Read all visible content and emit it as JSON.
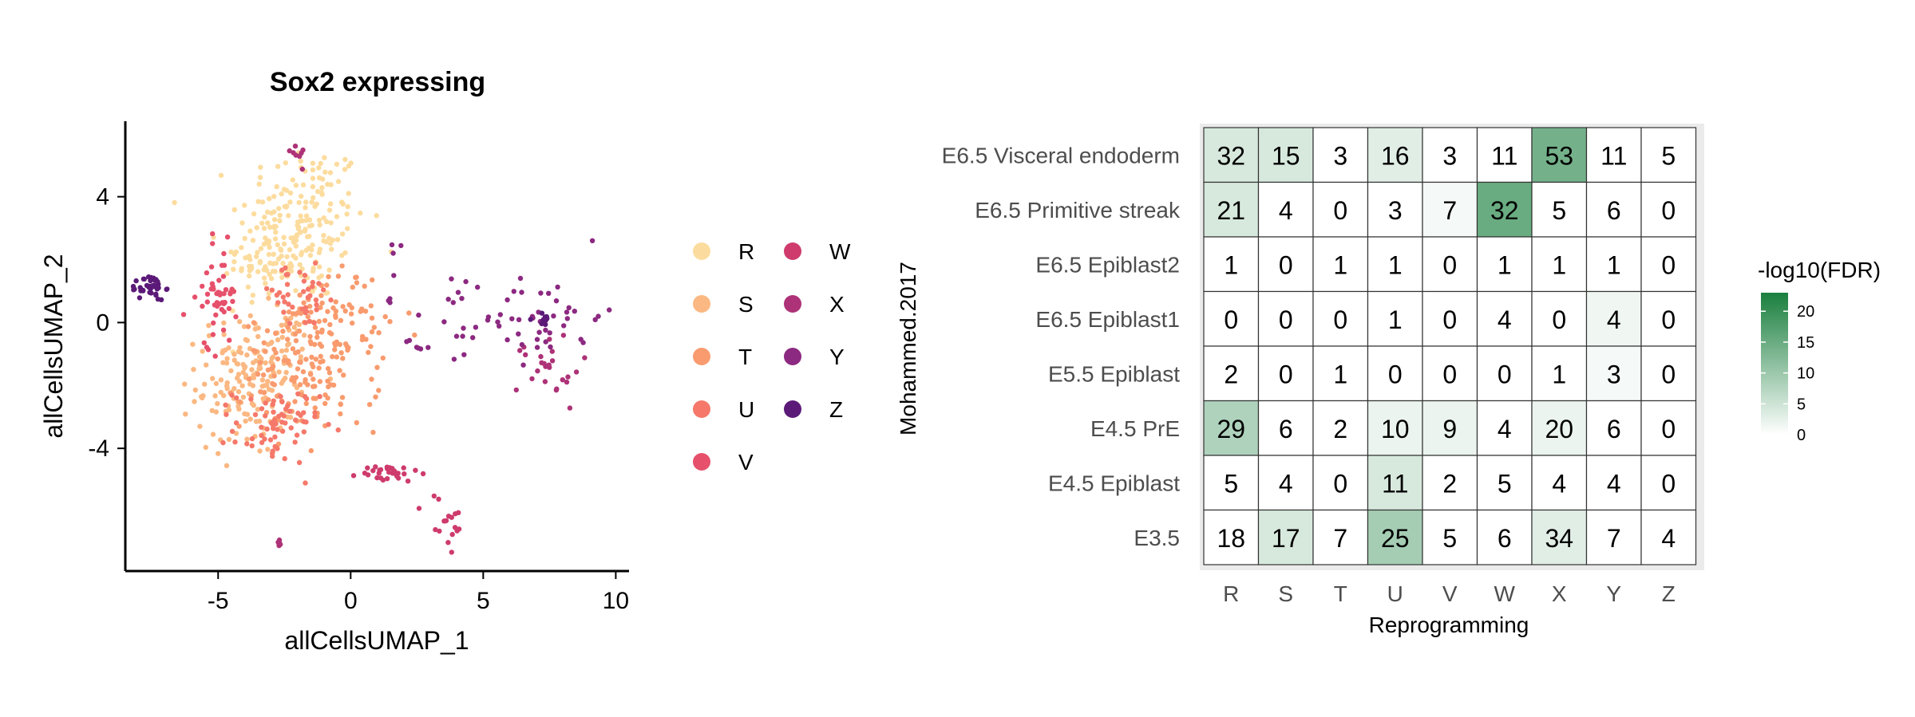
{
  "chart_data": [
    {
      "type": "scatter",
      "title": "Sox2 expressing",
      "xlabel": "allCellsUMAP_1",
      "ylabel": "allCellsUMAP_2",
      "xlim": [
        -8.5,
        10.5
      ],
      "ylim": [
        -7.9,
        6.4
      ],
      "x_ticks": [
        -5,
        0,
        5,
        10
      ],
      "x_tick_labels": [
        "-5",
        "0",
        "5",
        "10"
      ],
      "y_ticks": [
        -4,
        0,
        4
      ],
      "y_tick_labels": [
        "-4",
        "0",
        "4"
      ],
      "grid": false,
      "legend_position": "right",
      "series": [
        {
          "name": "R",
          "color": "#FCDC9E",
          "clusters": [
            {
              "cx": -1.8,
              "cy": 3.2,
              "sx": 1.2,
              "sy": 1.3,
              "n": 170
            },
            {
              "cx": -3.2,
              "cy": 2.0,
              "sx": 0.8,
              "sy": 0.7,
              "n": 70
            }
          ]
        },
        {
          "name": "S",
          "color": "#FBB882",
          "clusters": [
            {
              "cx": -4.0,
              "cy": -2.0,
              "sx": 0.9,
              "sy": 1.1,
              "n": 130
            },
            {
              "cx": -3.0,
              "cy": -1.0,
              "sx": 0.8,
              "sy": 0.7,
              "n": 60
            }
          ]
        },
        {
          "name": "T",
          "color": "#F99B6E",
          "clusters": [
            {
              "cx": -1.5,
              "cy": -1.6,
              "sx": 1.3,
              "sy": 0.9,
              "n": 140
            },
            {
              "cx": -0.5,
              "cy": 0.4,
              "sx": 0.9,
              "sy": 0.7,
              "n": 60
            }
          ]
        },
        {
          "name": "U",
          "color": "#F5786A",
          "clusters": [
            {
              "cx": -2.8,
              "cy": -3.3,
              "sx": 0.8,
              "sy": 0.6,
              "n": 70
            },
            {
              "cx": -2.0,
              "cy": 0.8,
              "sx": 0.9,
              "sy": 0.5,
              "n": 40
            }
          ]
        },
        {
          "name": "V",
          "color": "#E6506B",
          "clusters": [
            {
              "cx": -4.9,
              "cy": 0.9,
              "sx": 0.3,
              "sy": 0.8,
              "n": 45
            },
            {
              "cx": -5.9,
              "cy": 0.6,
              "sx": 0.5,
              "sy": 0.4,
              "n": 8
            }
          ]
        },
        {
          "name": "W",
          "color": "#CE3B6C",
          "clusters": [
            {
              "cx": 1.4,
              "cy": -4.8,
              "sx": 0.6,
              "sy": 0.15,
              "n": 30
            },
            {
              "cx": 3.6,
              "cy": -6.4,
              "sx": 0.4,
              "sy": 0.5,
              "n": 18
            }
          ]
        },
        {
          "name": "X",
          "color": "#AD3277",
          "clusters": [
            {
              "cx": -2.1,
              "cy": 5.4,
              "sx": 0.3,
              "sy": 0.2,
              "n": 8
            },
            {
              "cx": -2.7,
              "cy": -6.9,
              "sx": 0.05,
              "sy": 0.12,
              "n": 6
            },
            {
              "cx": 7.5,
              "cy": -1.5,
              "sx": 0.6,
              "sy": 0.6,
              "n": 25
            }
          ]
        },
        {
          "name": "Y",
          "color": "#8C2981",
          "clusters": [
            {
              "cx": 7.3,
              "cy": 0.2,
              "sx": 1.1,
              "sy": 0.7,
              "n": 45
            },
            {
              "cx": 3.8,
              "cy": 0.2,
              "sx": 0.7,
              "sy": 0.8,
              "n": 14
            },
            {
              "cx": 2.6,
              "cy": -0.7,
              "sx": 0.3,
              "sy": 0.15,
              "n": 6
            },
            {
              "cx": 1.5,
              "cy": 2.0,
              "sx": 0.3,
              "sy": 1.1,
              "n": 7
            }
          ]
        },
        {
          "name": "Z",
          "color": "#5B1A78",
          "clusters": [
            {
              "cx": -7.5,
              "cy": 1.1,
              "sx": 0.25,
              "sy": 0.2,
              "n": 40
            },
            {
              "cx": 7.0,
              "cy": 0.1,
              "sx": 0.3,
              "sy": 0.2,
              "n": 10
            }
          ]
        }
      ]
    },
    {
      "type": "heatmap",
      "xlabel": "Reprogramming",
      "ylabel": "Mohammed.2017",
      "x": [
        "R",
        "S",
        "T",
        "U",
        "V",
        "W",
        "X",
        "Y",
        "Z"
      ],
      "y": [
        "E6.5 Visceral endoderm",
        "E6.5 Primitive streak",
        "E6.5 Epiblast2",
        "E6.5 Epiblast1",
        "E5.5 Epiblast",
        "E4.5 PrE",
        "E4.5 Epiblast",
        "E3.5"
      ],
      "values": [
        [
          32,
          15,
          3,
          16,
          3,
          11,
          53,
          11,
          5
        ],
        [
          21,
          4,
          0,
          3,
          7,
          32,
          5,
          6,
          0
        ],
        [
          1,
          0,
          1,
          1,
          0,
          1,
          1,
          1,
          0
        ],
        [
          0,
          0,
          0,
          1,
          0,
          4,
          0,
          4,
          0
        ],
        [
          2,
          0,
          1,
          0,
          0,
          0,
          1,
          3,
          0
        ],
        [
          29,
          6,
          2,
          10,
          9,
          4,
          20,
          6,
          0
        ],
        [
          5,
          4,
          0,
          11,
          2,
          5,
          4,
          4,
          0
        ],
        [
          18,
          17,
          7,
          25,
          5,
          6,
          34,
          7,
          4
        ]
      ],
      "fill_metric": [
        [
          4,
          4,
          0,
          3,
          0,
          0,
          14,
          0,
          0
        ],
        [
          4,
          0,
          0,
          0,
          1,
          15,
          0,
          0,
          0
        ],
        [
          0,
          0,
          0,
          0,
          0,
          0,
          0,
          0,
          0
        ],
        [
          0,
          0,
          0,
          0,
          0,
          0,
          0,
          1.5,
          0
        ],
        [
          0,
          0,
          0,
          0,
          0,
          0,
          0,
          1,
          0
        ],
        [
          8,
          0,
          0,
          2,
          2,
          0,
          2,
          0,
          0
        ],
        [
          0,
          0,
          0,
          4,
          0,
          0,
          0,
          0,
          0
        ],
        [
          0,
          4,
          0,
          9,
          0,
          0,
          3,
          0,
          0
        ]
      ],
      "legend": {
        "title": "-log10(FDR)",
        "ticks": [
          0,
          5,
          10,
          15,
          20
        ],
        "tick_labels": [
          "0",
          "5",
          "10",
          "15",
          "20"
        ],
        "max": 23,
        "color_low": "#FFFFFF",
        "color_high": "#1A7F3E"
      },
      "panel_background": "#EBEBEB",
      "legend_position": "right"
    }
  ]
}
